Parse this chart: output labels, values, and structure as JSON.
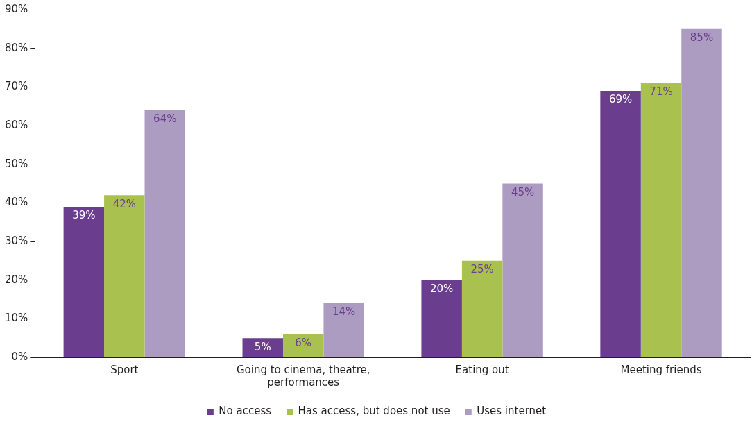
{
  "chart_data": {
    "type": "bar",
    "categories": [
      "Sport",
      "Going to cinema, theatre, performances",
      "Eating out",
      "Meeting friends"
    ],
    "series": [
      {
        "name": "No access",
        "color": "#6a3d8f",
        "values": [
          39,
          5,
          20,
          69
        ],
        "value_labels": [
          "39%",
          "5%",
          "20%",
          "69%"
        ]
      },
      {
        "name": "Has access, but does not use",
        "color": "#a9c24f",
        "values": [
          42,
          6,
          25,
          71
        ],
        "value_labels": [
          "42%",
          "6%",
          "25%",
          "71%"
        ]
      },
      {
        "name": "Uses internet",
        "color": "#ad9cc2",
        "values": [
          64,
          14,
          45,
          85
        ],
        "value_labels": [
          "64%",
          "14%",
          "45%",
          "85%"
        ]
      }
    ],
    "ylim": [
      0,
      90
    ],
    "yticks": [
      {
        "value": 0,
        "label": "0%"
      },
      {
        "value": 10,
        "label": "10%"
      },
      {
        "value": 20,
        "label": "20%"
      },
      {
        "value": 30,
        "label": "30%"
      },
      {
        "value": 40,
        "label": "40%"
      },
      {
        "value": 50,
        "label": "50%"
      },
      {
        "value": 60,
        "label": "60%"
      },
      {
        "value": 70,
        "label": "70%"
      },
      {
        "value": 80,
        "label": "80%"
      },
      {
        "value": 90,
        "label": "90%"
      }
    ],
    "grid": false,
    "legend": "bottom"
  }
}
